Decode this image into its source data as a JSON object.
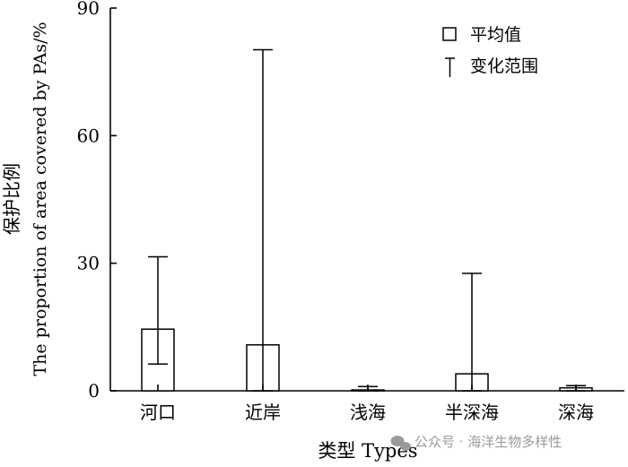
{
  "chart_data": {
    "type": "bar",
    "categories": [
      "河口",
      "近岸",
      "浅海",
      "半深海",
      "深海"
    ],
    "series": [
      {
        "name": "平均值",
        "values": [
          14.5,
          10.8,
          0.2,
          4.0,
          0.7
        ],
        "range_min": [
          6.3,
          0.0,
          0.0,
          0.0,
          0.0
        ],
        "range_max": [
          31.5,
          80.2,
          1.0,
          27.6,
          1.2
        ]
      }
    ],
    "range_series_name": "变化范围",
    "xlabel": "类型 Types",
    "ylabel_cn": "保护比例",
    "ylabel_en": "The proportion of area covered by PAs/%",
    "ylim": [
      0,
      90
    ],
    "yticks": [
      0,
      30,
      60,
      90
    ],
    "grid": false,
    "legend_position": "top-right",
    "colors": {
      "bar_fill": "#ffffff",
      "stroke": "#000000"
    }
  },
  "watermark": "公众号 · 海洋生物多样性"
}
